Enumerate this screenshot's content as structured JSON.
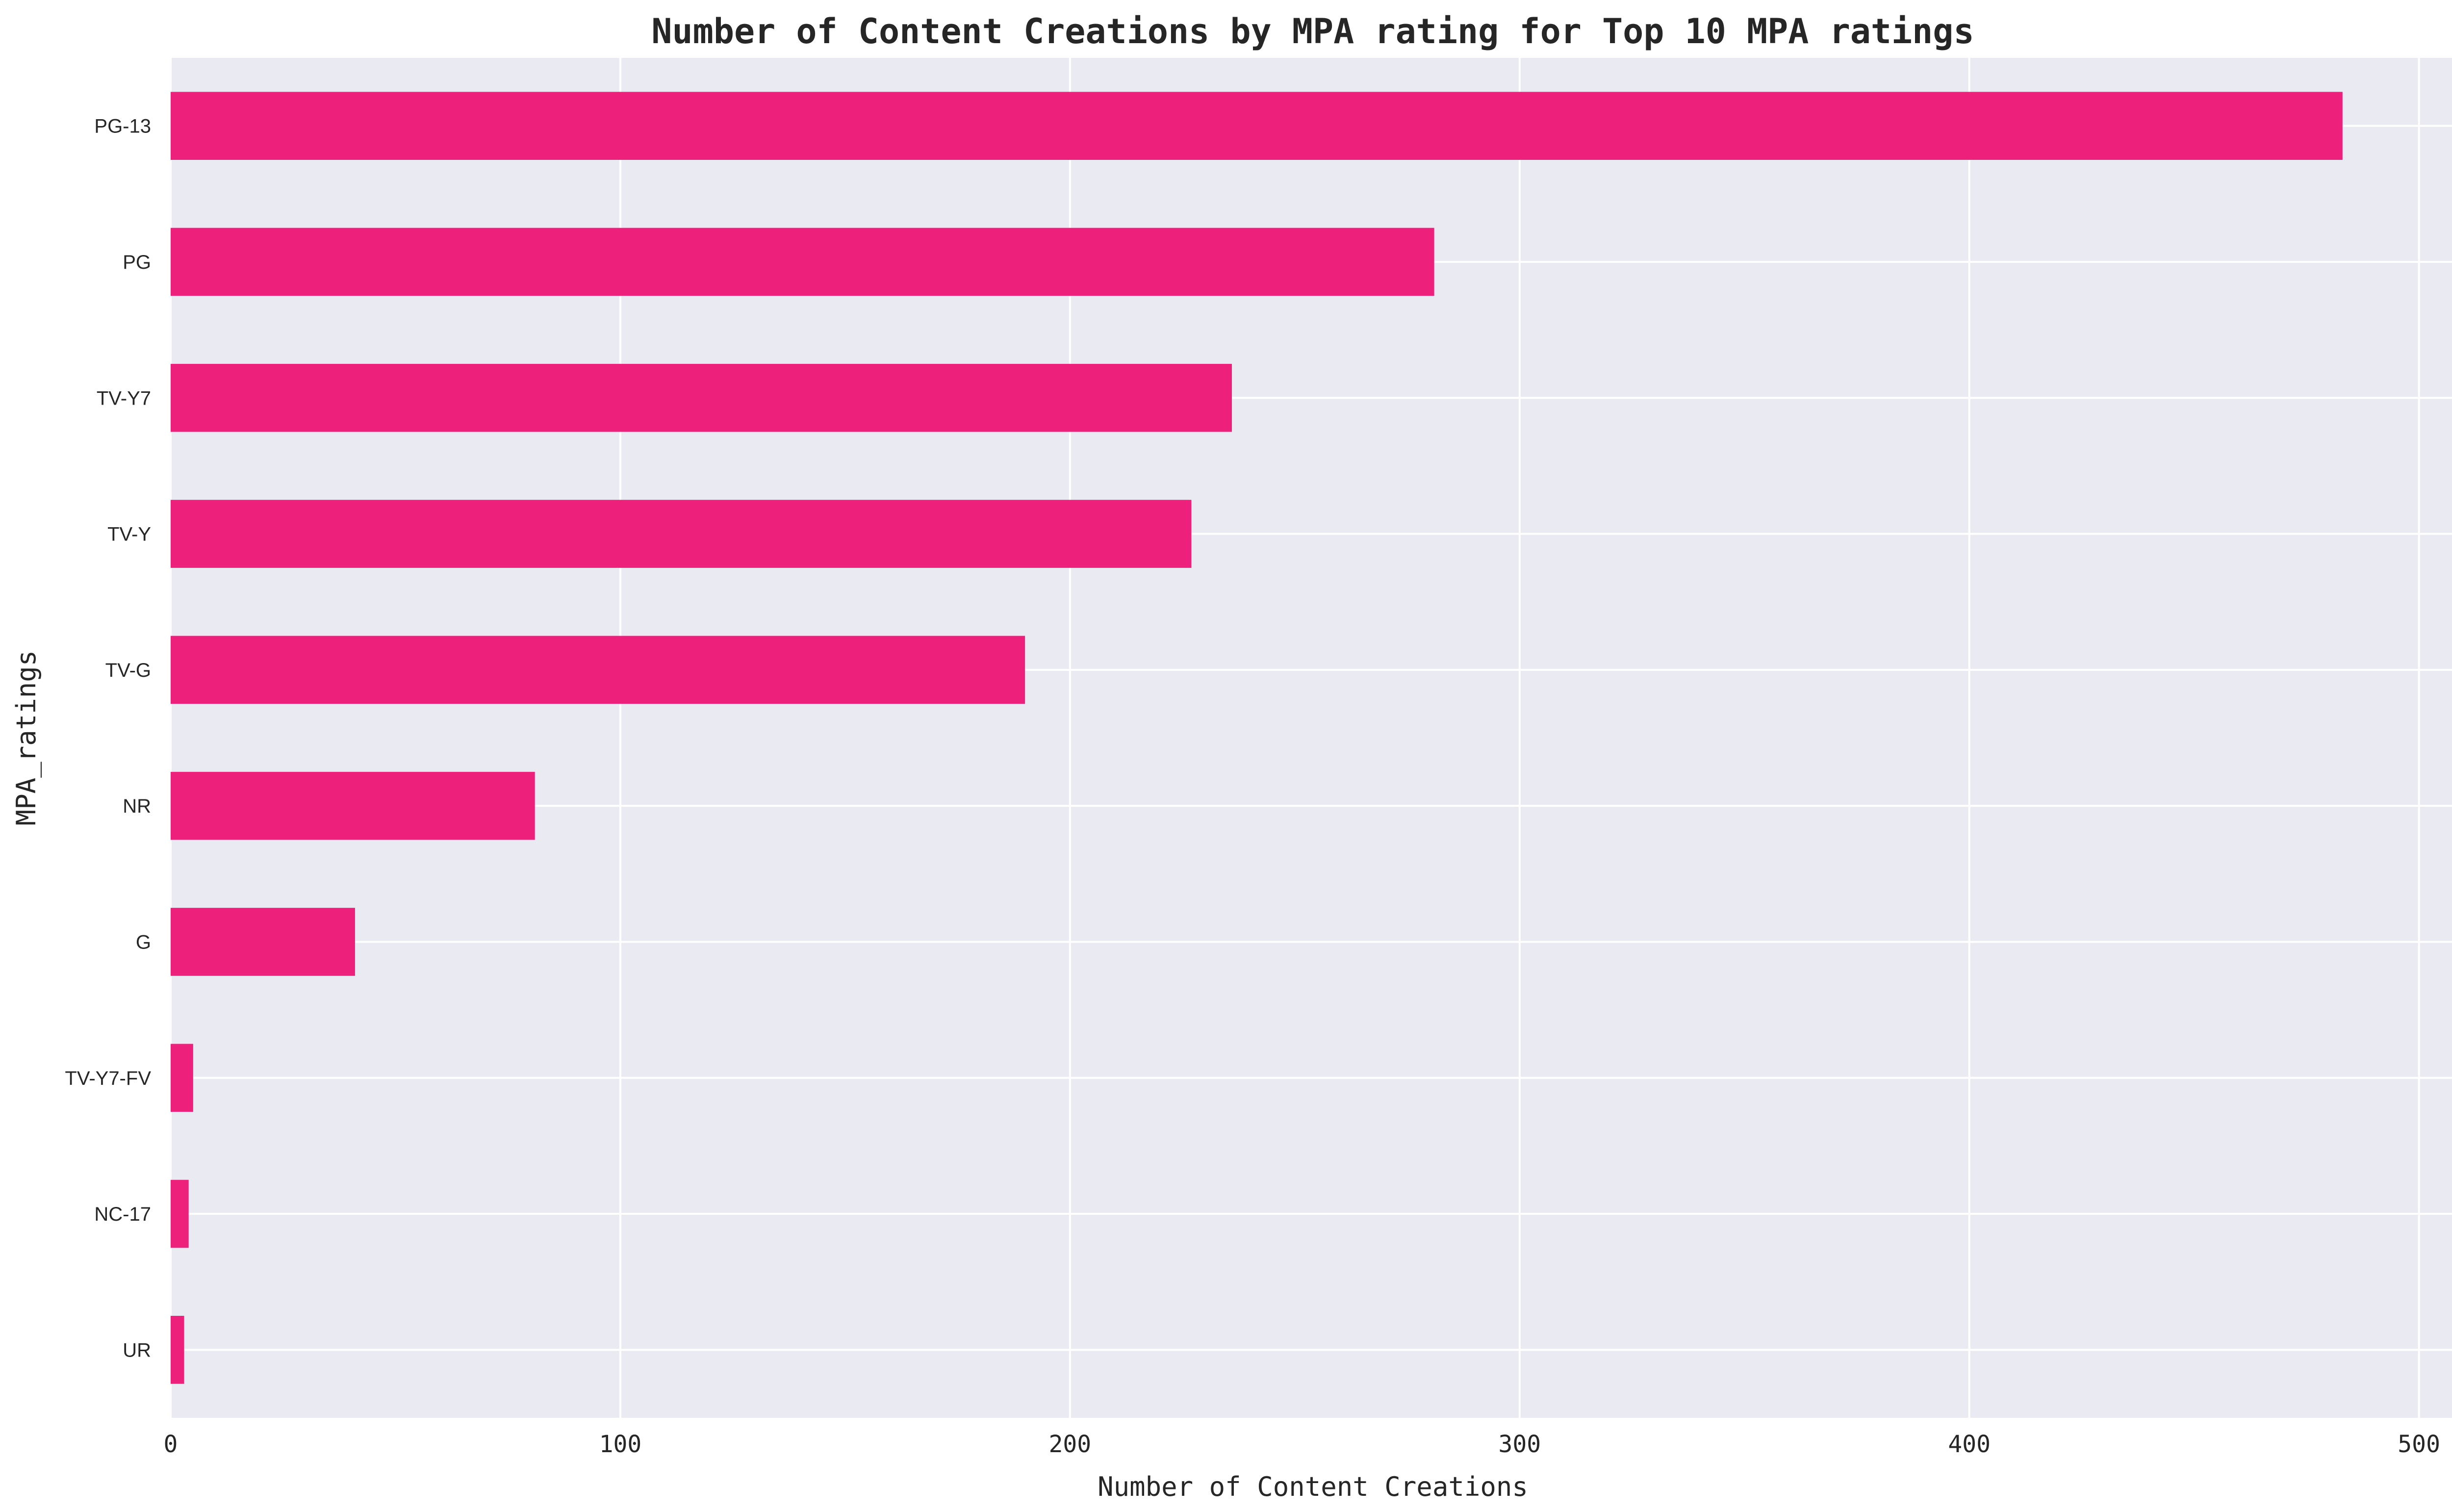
{
  "chart_data": {
    "type": "bar",
    "orientation": "horizontal",
    "title": "Number of Content Creations by MPA rating for Top 10 MPA ratings",
    "xlabel": "Number of Content Creations",
    "ylabel": "MPA_ratings",
    "categories": [
      "PG-13",
      "PG",
      "TV-Y7",
      "TV-Y",
      "TV-G",
      "NR",
      "G",
      "TV-Y7-FV",
      "NC-17",
      "UR"
    ],
    "values": [
      483,
      281,
      236,
      227,
      190,
      81,
      41,
      5,
      4,
      3
    ],
    "xlim": [
      0,
      508
    ],
    "xticks": [
      0,
      100,
      200,
      300,
      400,
      500
    ],
    "grid": true,
    "legend": "none",
    "bar_color": "#ed207b",
    "background_color": "#eaeaf2",
    "grid_color": "#ffffff"
  }
}
